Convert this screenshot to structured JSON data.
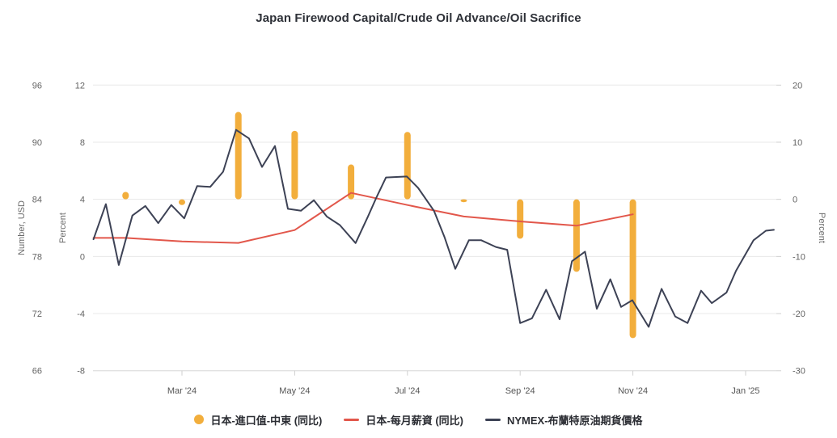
{
  "title": "Japan Firewood Capital/Crude Oil Advance/Oil Sacrifice",
  "colors": {
    "bar": "#F2AE3C",
    "wage_line": "#E2574B",
    "brent_line": "#3D4255",
    "grid": "#E8E8E8",
    "axis_line": "#DCDCDC",
    "tick": "#CFCFCF",
    "axis_text": "#646464",
    "x_text": "#555555",
    "title_text": "#2E3138",
    "legend_text": "#2B2D33",
    "background": "#FFFFFF"
  },
  "axes": {
    "left_usd": {
      "title": "Number, USD",
      "ticks": [
        96,
        90,
        84,
        78,
        72,
        66
      ],
      "max": 96,
      "min": 66
    },
    "left_pct": {
      "title": "Percent",
      "ticks": [
        12,
        8,
        4,
        0,
        -4,
        -8
      ],
      "max": 12,
      "min": -8
    },
    "right_pct": {
      "title": "Percent",
      "ticks": [
        20,
        10,
        0,
        -10,
        -20,
        -30
      ],
      "max": 20,
      "min": -30
    },
    "x": {
      "tick_labels": [
        "Mar '24",
        "May '24",
        "Jul '24",
        "Sep '24",
        "Nov '24",
        "Jan '25"
      ],
      "tick_months": [
        2,
        4,
        6,
        8,
        10,
        12
      ],
      "min_month": 0.43,
      "max_month": 12.54
    }
  },
  "legend": [
    {
      "label": "日本-進口值-中東 (同比)",
      "swatch": "circle",
      "color": "#F2AE3C"
    },
    {
      "label": "日本-每月薪資 (同比)",
      "swatch": "line",
      "color": "#E2574B"
    },
    {
      "label": "NYMEX-布蘭特原油期貨價格",
      "swatch": "line",
      "color": "#3D4255"
    }
  ],
  "chart_data": [
    {
      "name": "日本-進口值-中東 (同比)",
      "type": "bar",
      "axis": "right_pct",
      "unit": "percent",
      "categories": [
        "Feb '24",
        "Mar '24",
        "Apr '24",
        "May '24",
        "Jun '24",
        "Jul '24",
        "Aug '24",
        "Sep '24",
        "Oct '24",
        "Nov '24"
      ],
      "months": [
        1,
        2,
        3,
        4,
        5,
        6,
        7,
        8,
        9,
        10
      ],
      "values": [
        1.3,
        -1.0,
        15.3,
        12.0,
        6.1,
        11.8,
        -0.5,
        -6.9,
        -12.7,
        -24.3
      ]
    },
    {
      "name": "日本-每月薪資 (同比)",
      "type": "line",
      "axis": "left_pct",
      "unit": "percent",
      "categories": [
        "Jan '24",
        "Feb '24",
        "Mar '24",
        "Apr '24",
        "May '24",
        "Jun '24",
        "Jul '24",
        "Aug '24",
        "Sep '24",
        "Oct '24",
        "Nov '24"
      ],
      "months": [
        0,
        1,
        2,
        3,
        4,
        5,
        6,
        7,
        8,
        9,
        10
      ],
      "values": [
        1.3,
        1.3,
        1.05,
        0.95,
        1.85,
        4.45,
        3.6,
        2.8,
        2.45,
        2.15,
        2.95
      ]
    },
    {
      "name": "NYMEX-布蘭特原油期貨價格",
      "type": "line",
      "axis": "left_usd",
      "unit": "USD",
      "points": [
        [
          0.43,
          79.8
        ],
        [
          0.65,
          83.5
        ],
        [
          0.88,
          77.1
        ],
        [
          1.12,
          82.3
        ],
        [
          1.35,
          83.3
        ],
        [
          1.58,
          81.5
        ],
        [
          1.81,
          83.4
        ],
        [
          2.04,
          82.0
        ],
        [
          2.27,
          85.4
        ],
        [
          2.5,
          85.3
        ],
        [
          2.73,
          86.9
        ],
        [
          2.96,
          91.3
        ],
        [
          3.19,
          90.4
        ],
        [
          3.42,
          87.4
        ],
        [
          3.65,
          89.6
        ],
        [
          3.88,
          83.0
        ],
        [
          4.11,
          82.8
        ],
        [
          4.34,
          83.9
        ],
        [
          4.57,
          82.2
        ],
        [
          4.8,
          81.3
        ],
        [
          5.08,
          79.4
        ],
        [
          5.3,
          82.2
        ],
        [
          5.45,
          84.2
        ],
        [
          5.62,
          86.3
        ],
        [
          5.99,
          86.4
        ],
        [
          6.19,
          85.2
        ],
        [
          6.47,
          82.8
        ],
        [
          6.66,
          80.0
        ],
        [
          6.85,
          76.7
        ],
        [
          7.09,
          79.7
        ],
        [
          7.31,
          79.7
        ],
        [
          7.57,
          79.0
        ],
        [
          7.77,
          78.7
        ],
        [
          8.0,
          71.0
        ],
        [
          8.21,
          71.5
        ],
        [
          8.46,
          74.5
        ],
        [
          8.7,
          71.4
        ],
        [
          8.92,
          77.5
        ],
        [
          9.15,
          78.5
        ],
        [
          9.36,
          72.5
        ],
        [
          9.6,
          75.6
        ],
        [
          9.79,
          72.7
        ],
        [
          9.99,
          73.4
        ],
        [
          10.28,
          70.6
        ],
        [
          10.51,
          74.6
        ],
        [
          10.75,
          71.7
        ],
        [
          10.97,
          71.0
        ],
        [
          11.21,
          74.4
        ],
        [
          11.4,
          73.1
        ],
        [
          11.66,
          74.2
        ],
        [
          11.83,
          76.5
        ],
        [
          12.14,
          79.7
        ],
        [
          12.36,
          80.7
        ],
        [
          12.5,
          80.8
        ]
      ]
    }
  ]
}
